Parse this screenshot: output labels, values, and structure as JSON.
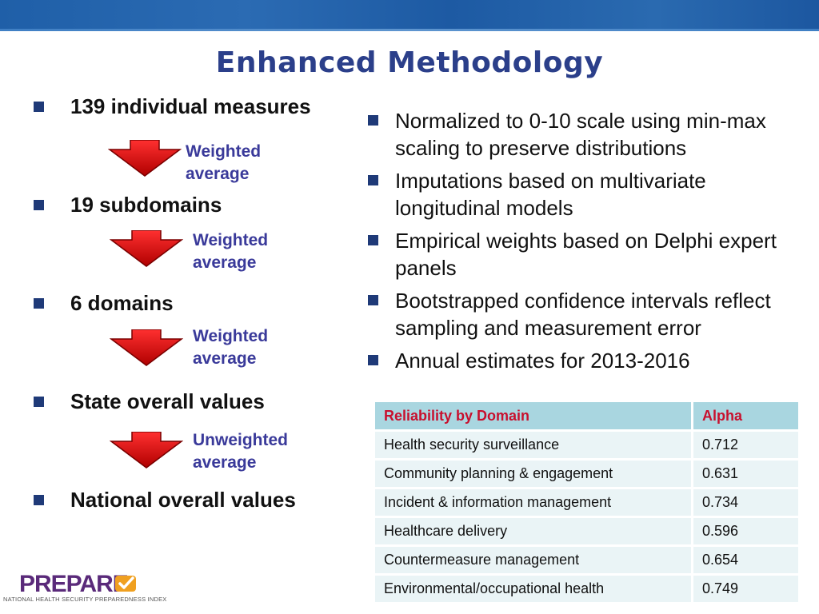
{
  "title": "Enhanced Methodology",
  "flow": {
    "items": [
      "139 individual measures",
      "19 subdomains",
      "6 domains",
      "State overall values",
      "National overall values"
    ],
    "arrows": [
      {
        "line1": "Weighted",
        "line2": "average"
      },
      {
        "line1": "Weighted",
        "line2": "average"
      },
      {
        "line1": "Weighted",
        "line2": "average"
      },
      {
        "line1": "Unweighted",
        "line2": "average"
      }
    ]
  },
  "bullets": [
    "Normalized to 0-10 scale using min-max scaling to preserve distributions",
    "Imputations based on multivariate longitudinal models",
    "Empirical weights based on Delphi expert panels",
    "Bootstrapped confidence intervals reflect sampling and measurement error",
    "Annual estimates for 2013-2016"
  ],
  "table": {
    "headers": [
      "Reliability by Domain",
      "Alpha"
    ],
    "rows": [
      [
        "Health security surveillance",
        "0.712"
      ],
      [
        "Community planning & engagement",
        "0.631"
      ],
      [
        "Incident & information management",
        "0.734"
      ],
      [
        "Healthcare delivery",
        "0.596"
      ],
      [
        "Countermeasure management",
        "0.654"
      ],
      [
        "Environmental/occupational health",
        "0.749"
      ]
    ]
  },
  "logo": {
    "word": "PREPARE",
    "subtitle": "NATIONAL HEALTH SECURITY PREPAREDNESS INDEX"
  },
  "colors": {
    "banner": "#1f5fa8",
    "title": "#2b3f8a",
    "bullet_square": "#1f3a78",
    "arrow": "#e01010",
    "arrow_label": "#3a3a9a",
    "table_header_bg": "#a9d6e0",
    "table_header_text": "#c8102e",
    "table_row_bg": "#eaf4f6",
    "logo_purple": "#5a2a7a",
    "logo_orange": "#f0a020"
  }
}
